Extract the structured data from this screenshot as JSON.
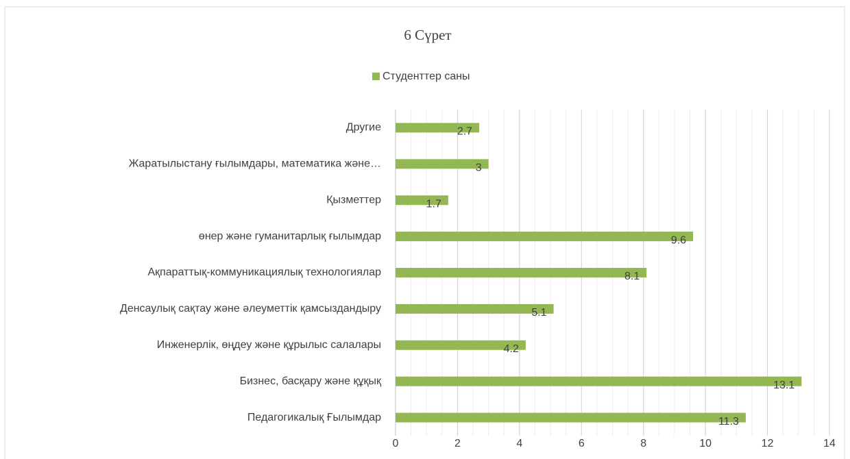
{
  "chart_data": {
    "type": "barh",
    "title": "6 Сүрет",
    "categories": [
      "Педагогикалық Ғылымдар",
      "Бизнес, басқару және құқық",
      "Инженерлік, өңдеу және құрылыс салалары",
      "Денсаулық сақтау және әлеуметтік қамсыздандыру",
      "Ақпараттық-коммуникациялық технологиялар",
      "өнер және гуманитарлық ғылымдар",
      "Қызметтер",
      "Жаратылыстану ғылымдары, математика және…",
      "Другие"
    ],
    "series": [
      {
        "name": "Студенттер саны",
        "color": "#93b853",
        "values": [
          11.3,
          13.1,
          4.2,
          5.1,
          8.1,
          9.6,
          1.7,
          3,
          2.7
        ]
      }
    ],
    "xlim": [
      0,
      14
    ],
    "xticks": [
      0,
      2,
      4,
      6,
      8,
      10,
      12,
      14
    ],
    "grid": true,
    "minor_grid": 0.5,
    "legend": "top"
  }
}
